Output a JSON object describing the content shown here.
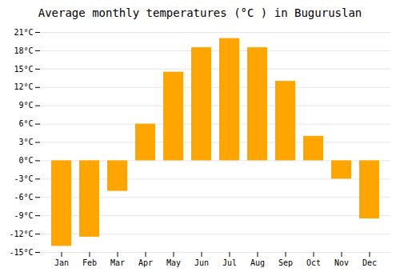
{
  "chart_data": {
    "type": "bar",
    "title": "Average monthly temperatures (°C ) in Buguruslan",
    "categories": [
      "Jan",
      "Feb",
      "Mar",
      "Apr",
      "May",
      "Jun",
      "Jul",
      "Aug",
      "Sep",
      "Oct",
      "Nov",
      "Dec"
    ],
    "values": [
      -14,
      -12.5,
      -5,
      6,
      14.5,
      18.5,
      20,
      18.5,
      13,
      4,
      -3,
      -9.5
    ],
    "color": "#FFA500",
    "ylim": [
      -15,
      21
    ],
    "yticks": [
      {
        "value": -15,
        "label": "-15°C"
      },
      {
        "value": -12,
        "label": "-12°C"
      },
      {
        "value": -9,
        "label": "-9°C"
      },
      {
        "value": -6,
        "label": "-6°C"
      },
      {
        "value": -3,
        "label": "-3°C"
      },
      {
        "value": 0,
        "label": "0°C"
      },
      {
        "value": 3,
        "label": "3°C"
      },
      {
        "value": 6,
        "label": "6°C"
      },
      {
        "value": 9,
        "label": "9°C"
      },
      {
        "value": 12,
        "label": "12°C"
      },
      {
        "value": 15,
        "label": "15°C"
      },
      {
        "value": 18,
        "label": "18°C"
      },
      {
        "value": 21,
        "label": "21°C"
      }
    ],
    "grid": true
  }
}
